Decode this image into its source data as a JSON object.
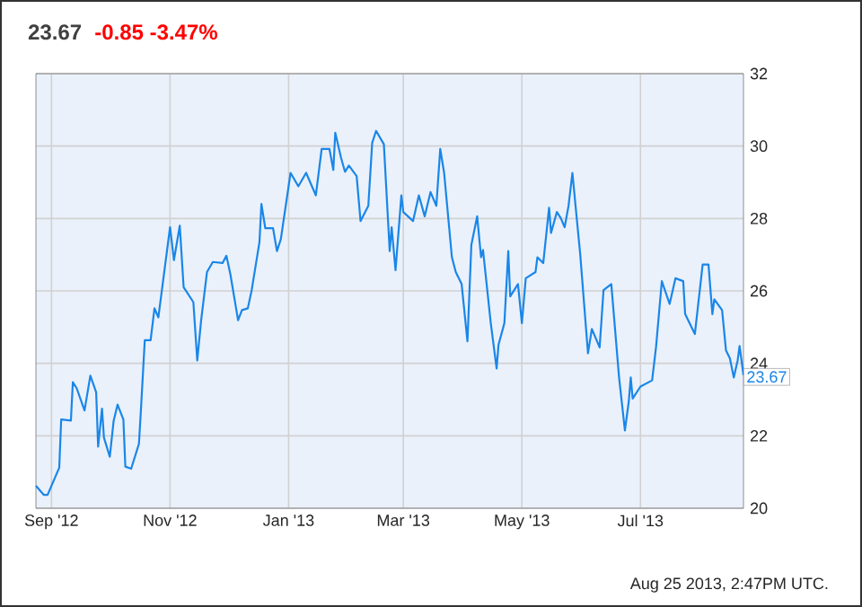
{
  "chart_data": {
    "type": "line",
    "title": "23.67",
    "subtitle": "-0.85  -3.47%",
    "annotations": [
      {
        "text": "23.67",
        "x": "2013-08-23",
        "y": 23.67
      },
      "Aug 25 2013, 2:47PM UTC."
    ],
    "x": [
      "2012-08-24",
      "2012-08-28",
      "2012-08-30",
      "2012-09-05",
      "2012-09-06",
      "2012-09-11",
      "2012-09-12",
      "2012-09-14",
      "2012-09-18",
      "2012-09-21",
      "2012-09-24",
      "2012-09-25",
      "2012-09-27",
      "2012-09-28",
      "2012-10-01",
      "2012-10-03",
      "2012-10-05",
      "2012-10-08",
      "2012-10-09",
      "2012-10-12",
      "2012-10-16",
      "2012-10-17",
      "2012-10-19",
      "2012-10-22",
      "2012-10-24",
      "2012-10-26",
      "2012-11-01",
      "2012-11-03",
      "2012-11-06",
      "2012-11-08",
      "2012-11-13",
      "2012-11-15",
      "2012-11-17",
      "2012-11-20",
      "2012-11-23",
      "2012-11-28",
      "2012-11-30",
      "2012-12-02",
      "2012-12-06",
      "2012-12-08",
      "2012-12-11",
      "2012-12-13",
      "2012-12-17",
      "2012-12-18",
      "2012-12-20",
      "2012-12-24",
      "2012-12-26",
      "2012-12-28",
      "2013-01-02",
      "2013-01-06",
      "2013-01-10",
      "2013-01-15",
      "2013-01-18",
      "2013-01-22",
      "2013-01-24",
      "2013-01-25",
      "2013-01-28",
      "2013-01-30",
      "2013-02-01",
      "2013-02-05",
      "2013-02-07",
      "2013-02-11",
      "2013-02-13",
      "2013-02-15",
      "2013-02-19",
      "2013-02-22",
      "2013-02-23",
      "2013-02-25",
      "2013-02-28",
      "2013-03-01",
      "2013-03-06",
      "2013-03-09",
      "2013-03-12",
      "2013-03-15",
      "2013-03-18",
      "2013-03-20",
      "2013-03-22",
      "2013-03-26",
      "2013-03-28",
      "2013-03-31",
      "2013-04-03",
      "2013-04-05",
      "2013-04-08",
      "2013-04-10",
      "2013-04-11",
      "2013-04-15",
      "2013-04-18",
      "2013-04-19",
      "2013-04-22",
      "2013-04-24",
      "2013-04-25",
      "2013-04-29",
      "2013-05-01",
      "2013-05-03",
      "2013-05-08",
      "2013-05-09",
      "2013-05-12",
      "2013-05-15",
      "2013-05-16",
      "2013-05-19",
      "2013-05-21",
      "2013-05-23",
      "2013-05-25",
      "2013-05-27",
      "2013-05-29",
      "2013-05-31",
      "2013-06-04",
      "2013-06-06",
      "2013-06-10",
      "2013-06-12",
      "2013-06-16",
      "2013-06-20",
      "2013-06-23",
      "2013-06-25",
      "2013-06-26",
      "2013-06-27",
      "2013-07-01",
      "2013-07-07",
      "2013-07-09",
      "2013-07-12",
      "2013-07-16",
      "2013-07-19",
      "2013-07-23",
      "2013-07-24",
      "2013-07-29",
      "2013-08-02",
      "2013-08-05",
      "2013-08-07",
      "2013-08-08",
      "2013-08-12",
      "2013-08-14",
      "2013-08-16",
      "2013-08-18",
      "2013-08-20",
      "2013-08-21",
      "2013-08-23"
    ],
    "series": [
      {
        "color": "#1a86e8",
        "values": [
          20.62,
          20.37,
          20.37,
          21.12,
          22.45,
          22.42,
          23.48,
          23.31,
          22.7,
          23.66,
          23.2,
          21.7,
          22.75,
          21.95,
          21.42,
          22.42,
          22.86,
          22.45,
          21.15,
          21.09,
          21.78,
          22.7,
          24.64,
          24.64,
          25.52,
          25.27,
          27.76,
          26.85,
          27.8,
          26.1,
          25.69,
          24.08,
          25.19,
          26.52,
          26.8,
          26.77,
          26.97,
          26.47,
          25.19,
          25.47,
          25.52,
          26.02,
          27.35,
          28.4,
          27.73,
          27.73,
          27.1,
          27.43,
          29.26,
          28.89,
          29.26,
          28.64,
          29.92,
          29.92,
          29.34,
          30.37,
          29.67,
          29.29,
          29.46,
          29.17,
          27.93,
          28.35,
          30.09,
          30.42,
          30.05,
          27.1,
          27.76,
          26.57,
          28.64,
          28.18,
          27.93,
          28.64,
          28.06,
          28.73,
          28.35,
          29.92,
          29.26,
          26.93,
          26.52,
          26.19,
          24.61,
          27.27,
          28.06,
          26.93,
          27.13,
          25.11,
          23.86,
          24.52,
          25.11,
          27.1,
          25.85,
          26.19,
          25.11,
          26.35,
          26.52,
          26.93,
          26.77,
          28.3,
          27.6,
          28.18,
          28.01,
          27.76,
          28.35,
          29.26,
          28.13,
          27.02,
          24.28,
          24.95,
          24.44,
          26.02,
          26.19,
          23.61,
          22.15,
          22.95,
          23.61,
          23.03,
          23.36,
          23.53,
          24.44,
          26.27,
          25.64,
          26.35,
          26.27,
          25.36,
          24.81,
          26.73,
          26.73,
          25.36,
          25.77,
          25.47,
          24.36,
          24.14,
          23.61,
          24.08,
          24.48,
          23.67
        ]
      }
    ],
    "xlim": [
      "2012-08-24",
      "2013-08-23"
    ],
    "xticks": [
      {
        "value": "2012-09-01",
        "label": "Sep '12"
      },
      {
        "value": "2012-11-01",
        "label": "Nov '12"
      },
      {
        "value": "2013-01-01",
        "label": "Jan '13"
      },
      {
        "value": "2013-03-01",
        "label": "Mar '13"
      },
      {
        "value": "2013-05-01",
        "label": "May '13"
      },
      {
        "value": "2013-07-01",
        "label": "Jul '13"
      }
    ],
    "ylim": [
      20,
      32
    ],
    "yticks": [
      20,
      22,
      24,
      26,
      28,
      30,
      32
    ],
    "grid": true,
    "marker": "none",
    "line_style": "solid"
  }
}
